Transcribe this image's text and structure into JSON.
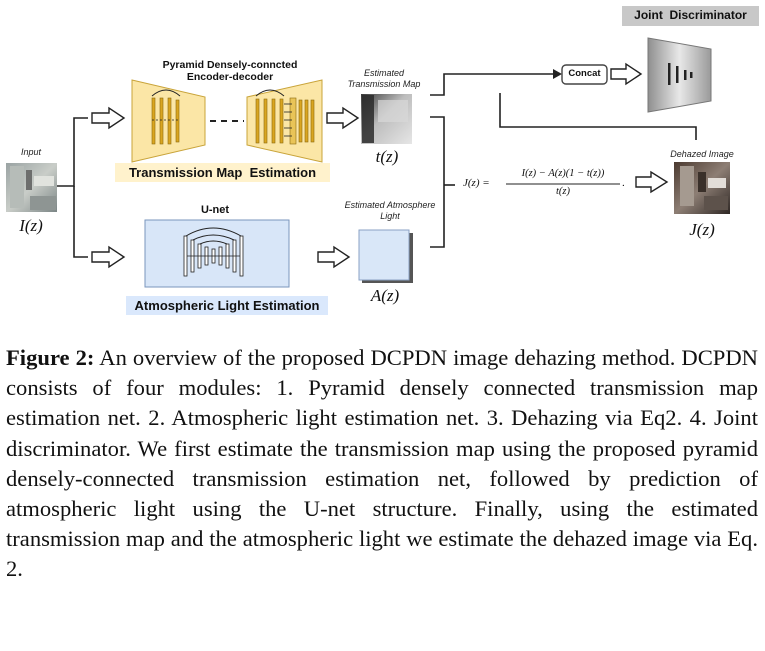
{
  "figure": {
    "input_label": "Input",
    "input_math": "I(z)",
    "pyramid_title_line1": "Pyramid Densely-conncted",
    "pyramid_title_line2": "Encoder-decoder",
    "transmission_label": "Transmission Map  Estimation",
    "estimated_transmission_line1": "Estimated",
    "estimated_transmission_line2": "Transmission Map",
    "transmission_math": "t(z)",
    "unet_label": "U-net",
    "atmospheric_label": "Atmospheric Light Estimation",
    "estimated_atmosphere_line1": "Estimated Atmosphere",
    "estimated_atmosphere_line2": "Light",
    "atmosphere_math": "A(z)",
    "concat_label": "Concat",
    "joint_discriminator_label": "Joint  Discriminator",
    "equation_lhs": "J(z) =",
    "equation_numerator": "I(z) − A(z)(1 − t(z))",
    "equation_denominator": "t(z)",
    "equation_period": ".",
    "dehazed_label": "Dehazed Image",
    "dehazed_math": "J(z)",
    "colors": {
      "yellow_fill": "#fbe6a6",
      "yellow_label_bg": "#fff2cc",
      "blue_fill": "#d8e6f8",
      "blue_label_bg": "#dae8fc",
      "concat_border": "#444444",
      "discriminator_gray": "#b9b9b9"
    }
  },
  "caption": {
    "title": "Figure 2:",
    "text": " An overview of the proposed DCPDN image dehazing method. DCPDN consists of four modules: 1. Pyramid densely connected transmission map estimation net. 2. Atmospheric light estimation net. 3. Dehazing via Eq2. 4. Joint discriminator. We first estimate the transmission map using the proposed pyramid densely-connected transmission estimation net, followed by prediction of atmospheric light using the U-net structure. Finally, using the estimated transmission map and the atmospheric light we estimate the dehazed image via Eq. 2."
  }
}
